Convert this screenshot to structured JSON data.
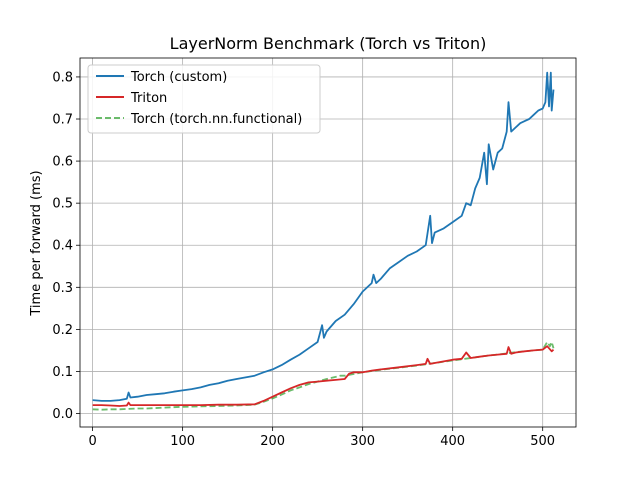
{
  "chart_data": {
    "type": "line",
    "title": "LayerNorm Benchmark (Torch vs Triton)",
    "xlabel": "",
    "ylabel": "Time per forward (ms)",
    "xlim": [
      -14,
      537
    ],
    "ylim": [
      -0.032,
      0.845
    ],
    "xticks": [
      0,
      100,
      200,
      300,
      400,
      500
    ],
    "yticks": [
      0.0,
      0.1,
      0.2,
      0.3,
      0.4,
      0.5,
      0.6,
      0.7,
      0.8
    ],
    "ytick_labels": [
      "0.0",
      "0.1",
      "0.2",
      "0.3",
      "0.4",
      "0.5",
      "0.6",
      "0.7",
      "0.8"
    ],
    "grid": true,
    "legend_position": "top-left",
    "series": [
      {
        "name": "Torch (custom)",
        "color": "#1f77b4",
        "style": "solid",
        "x": [
          0,
          10,
          20,
          30,
          38,
          40,
          42,
          50,
          60,
          70,
          80,
          90,
          100,
          110,
          120,
          130,
          140,
          150,
          160,
          170,
          180,
          190,
          200,
          210,
          220,
          230,
          240,
          250,
          255,
          257,
          260,
          270,
          280,
          290,
          300,
          310,
          312,
          315,
          320,
          330,
          340,
          350,
          360,
          370,
          375,
          377,
          380,
          390,
          400,
          410,
          415,
          420,
          425,
          430,
          435,
          438,
          440,
          445,
          450,
          455,
          460,
          462,
          465,
          470,
          475,
          480,
          485,
          490,
          495,
          500,
          503,
          505,
          507,
          509,
          510,
          512
        ],
        "y": [
          0.032,
          0.03,
          0.03,
          0.032,
          0.035,
          0.05,
          0.038,
          0.04,
          0.044,
          0.046,
          0.048,
          0.052,
          0.055,
          0.058,
          0.062,
          0.068,
          0.072,
          0.078,
          0.082,
          0.086,
          0.09,
          0.098,
          0.105,
          0.115,
          0.128,
          0.14,
          0.155,
          0.17,
          0.21,
          0.18,
          0.195,
          0.22,
          0.235,
          0.26,
          0.29,
          0.31,
          0.33,
          0.31,
          0.32,
          0.345,
          0.36,
          0.375,
          0.385,
          0.4,
          0.47,
          0.405,
          0.43,
          0.44,
          0.455,
          0.47,
          0.5,
          0.495,
          0.535,
          0.56,
          0.62,
          0.545,
          0.64,
          0.58,
          0.62,
          0.63,
          0.67,
          0.74,
          0.67,
          0.68,
          0.69,
          0.695,
          0.7,
          0.71,
          0.72,
          0.725,
          0.74,
          0.81,
          0.73,
          0.81,
          0.72,
          0.77
        ]
      },
      {
        "name": "Triton",
        "color": "#d62728",
        "style": "solid",
        "x": [
          0,
          10,
          20,
          30,
          38,
          40,
          42,
          50,
          60,
          80,
          100,
          120,
          140,
          160,
          180,
          190,
          200,
          210,
          220,
          230,
          240,
          250,
          260,
          270,
          280,
          285,
          290,
          300,
          305,
          310,
          320,
          340,
          360,
          370,
          372,
          375,
          380,
          390,
          400,
          410,
          415,
          420,
          430,
          440,
          450,
          460,
          462,
          465,
          470,
          480,
          490,
          500,
          505,
          510,
          512
        ],
        "y": [
          0.02,
          0.02,
          0.019,
          0.018,
          0.019,
          0.026,
          0.02,
          0.02,
          0.02,
          0.02,
          0.02,
          0.02,
          0.021,
          0.021,
          0.022,
          0.03,
          0.04,
          0.05,
          0.06,
          0.068,
          0.074,
          0.076,
          0.078,
          0.08,
          0.082,
          0.095,
          0.098,
          0.098,
          0.1,
          0.102,
          0.105,
          0.11,
          0.115,
          0.118,
          0.13,
          0.118,
          0.12,
          0.124,
          0.128,
          0.13,
          0.145,
          0.132,
          0.135,
          0.138,
          0.14,
          0.142,
          0.158,
          0.142,
          0.145,
          0.148,
          0.15,
          0.152,
          0.16,
          0.148,
          0.152
        ]
      },
      {
        "name": "Torch (torch.nn.functional)",
        "color": "#2ca02c",
        "style": "dashed",
        "x": [
          0,
          10,
          20,
          30,
          40,
          50,
          60,
          80,
          100,
          120,
          140,
          160,
          180,
          190,
          200,
          210,
          220,
          230,
          240,
          250,
          260,
          270,
          275,
          280,
          290,
          300,
          310,
          320,
          340,
          360,
          380,
          400,
          420,
          440,
          450,
          460,
          470,
          480,
          490,
          500,
          505,
          508,
          510,
          512
        ],
        "y": [
          0.01,
          0.009,
          0.01,
          0.01,
          0.011,
          0.012,
          0.012,
          0.014,
          0.016,
          0.017,
          0.018,
          0.019,
          0.021,
          0.028,
          0.036,
          0.045,
          0.055,
          0.062,
          0.07,
          0.076,
          0.082,
          0.087,
          0.09,
          0.09,
          0.094,
          0.098,
          0.101,
          0.104,
          0.109,
          0.114,
          0.12,
          0.126,
          0.132,
          0.138,
          0.14,
          0.143,
          0.146,
          0.148,
          0.15,
          0.152,
          0.17,
          0.16,
          0.17,
          0.155
        ]
      }
    ]
  }
}
